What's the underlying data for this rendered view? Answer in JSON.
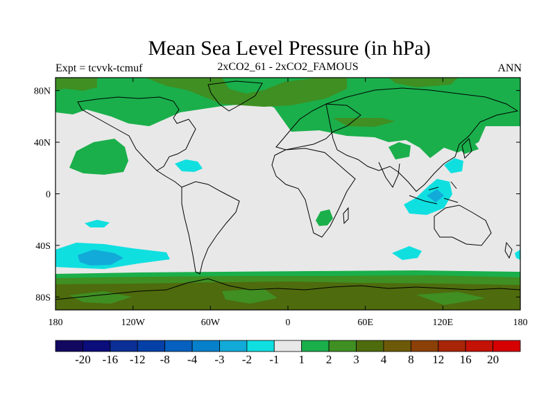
{
  "header": {
    "title": "Mean Sea Level Pressure (in hPa)",
    "left": "Expt = tcvvk-tcmuf",
    "center": "2xCO2_61 - 2xCO2_FAMOUS",
    "right": "ANN"
  },
  "map": {
    "projection": "cylindrical-equidistant",
    "lon_range": [
      -180,
      180
    ],
    "lat_range": [
      -90,
      90
    ],
    "x_ticks": [
      "180",
      "120W",
      "60W",
      "0",
      "60E",
      "120E",
      "180"
    ],
    "y_ticks": [
      "80N",
      "40N",
      "0",
      "40S",
      "80S"
    ],
    "background_color": "#e8e8e8",
    "fill_levels": {
      "level_1_2": "#1aaf4b",
      "level_2_3": "#3f8f22",
      "level_3_4": "#4e6b0e",
      "level_neg1_neg2": "#10dfe0",
      "level_neg2_neg3": "#12aad8"
    }
  },
  "colorbar": {
    "colors": [
      "#13085f",
      "#0a0d7a",
      "#0b2f96",
      "#0540a8",
      "#0660bf",
      "#0780cc",
      "#12aad8",
      "#10dfe0",
      "#e8e8e8",
      "#1aaf4b",
      "#3f8f22",
      "#4e6b0e",
      "#6d5a09",
      "#8b4007",
      "#a82507",
      "#c41206",
      "#d60000"
    ],
    "labels": [
      "-20",
      "-16",
      "-12",
      "-8",
      "-4",
      "-3",
      "-2",
      "-1",
      "1",
      "2",
      "3",
      "4",
      "8",
      "12",
      "16",
      "20"
    ]
  }
}
